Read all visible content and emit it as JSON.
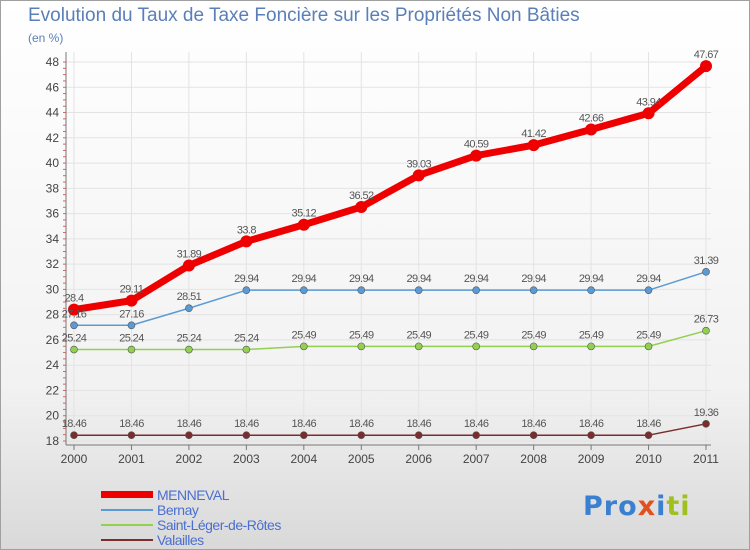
{
  "header": {
    "title": "Evolution du Taux de Taxe Foncière sur les Propriétés Non Bâties",
    "unit": "(en %)"
  },
  "logo": {
    "text": "Proxiti",
    "letters": [
      {
        "ch": "P",
        "color": "#3a7fd0"
      },
      {
        "ch": "r",
        "color": "#3a7fd0"
      },
      {
        "ch": "o",
        "color": "#3a7fd0"
      },
      {
        "ch": "x",
        "color": "#e05020"
      },
      {
        "ch": "i",
        "color": "#3a7fd0"
      },
      {
        "ch": "t",
        "color": "#a0c020"
      },
      {
        "ch": "i",
        "color": "#a0c020"
      }
    ]
  },
  "chart_data": {
    "type": "line",
    "title": "Evolution du Taux de Taxe Foncière sur les Propriétés Non Bâties",
    "ylabel": "(en %)",
    "xlabel": "",
    "x": [
      "2000",
      "2001",
      "2002",
      "2003",
      "2004",
      "2005",
      "2006",
      "2007",
      "2008",
      "2009",
      "2010",
      "2011"
    ],
    "ylim": [
      18,
      48
    ],
    "yticks": [
      "18",
      "20",
      "22",
      "24",
      "26",
      "28",
      "30",
      "32",
      "34",
      "36",
      "38",
      "40",
      "42",
      "44",
      "46",
      "48"
    ],
    "grid": true,
    "legend_position": "bottom-left",
    "series": [
      {
        "name": "MENNEVAL",
        "color": "#ee0000",
        "values": [
          28.4,
          29.11,
          31.89,
          33.8,
          35.12,
          36.52,
          39.03,
          40.59,
          41.42,
          42.66,
          43.94,
          47.67
        ],
        "labels": [
          "28.4",
          "29.11",
          "31.89",
          "33.8",
          "35.12",
          "36.52",
          "39.03",
          "40.59",
          "41.42",
          "42.66",
          "43.94",
          "47.67"
        ]
      },
      {
        "name": "Bernay",
        "color": "#5b9bd5",
        "values": [
          27.16,
          27.16,
          28.51,
          29.94,
          29.94,
          29.94,
          29.94,
          29.94,
          29.94,
          29.94,
          29.94,
          31.39
        ],
        "labels": [
          "27.16",
          "27.16",
          "28.51",
          "29.94",
          "29.94",
          "29.94",
          "29.94",
          "29.94",
          "29.94",
          "29.94",
          "29.94",
          "31.39"
        ]
      },
      {
        "name": "Saint-Léger-de-Rôtes",
        "color": "#92d050",
        "values": [
          25.24,
          25.24,
          25.24,
          25.24,
          25.49,
          25.49,
          25.49,
          25.49,
          25.49,
          25.49,
          25.49,
          26.73
        ],
        "labels": [
          "25.24",
          "25.24",
          "25.24",
          "25.24",
          "25.49",
          "25.49",
          "25.49",
          "25.49",
          "25.49",
          "25.49",
          "25.49",
          "26.73"
        ]
      },
      {
        "name": "Valailles",
        "color": "#7b2c2c",
        "values": [
          18.46,
          18.46,
          18.46,
          18.46,
          18.46,
          18.46,
          18.46,
          18.46,
          18.46,
          18.46,
          18.46,
          19.36
        ],
        "labels": [
          "18.46",
          "18.46",
          "18.46",
          "18.46",
          "18.46",
          "18.46",
          "18.46",
          "18.46",
          "18.46",
          "18.46",
          "18.46",
          "19.36"
        ]
      }
    ]
  }
}
